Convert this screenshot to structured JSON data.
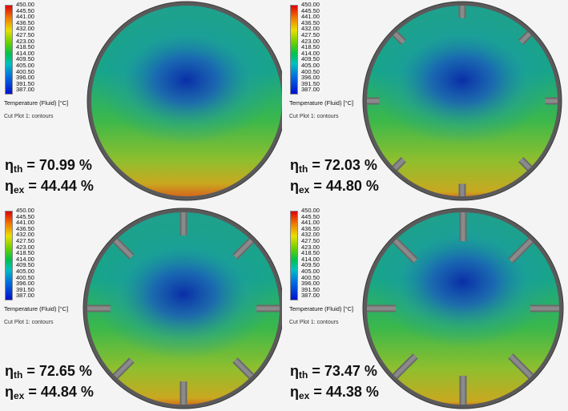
{
  "legend": {
    "ticks": [
      "450.00",
      "445.50",
      "441.00",
      "436.50",
      "432.00",
      "427.50",
      "423.00",
      "418.50",
      "414.00",
      "409.50",
      "405.00",
      "400.50",
      "396.00",
      "391.50",
      "387.00"
    ],
    "title": "Temperature (Fluid) [°C]",
    "cutplot": "Cut Plot 1: contours"
  },
  "symbols": {
    "eta": "η",
    "th": "th",
    "ex": "ex",
    "eq": " = ",
    "pct": " %"
  },
  "panels": [
    {
      "fins": 0,
      "eta_th": "70.99",
      "eta_ex": "44.44"
    },
    {
      "fins": 8,
      "eta_th": "72.03",
      "eta_ex": "44.80"
    },
    {
      "fins": 8,
      "eta_th": "72.65",
      "eta_ex": "44.84"
    },
    {
      "fins": 8,
      "eta_th": "73.47",
      "eta_ex": "44.38"
    }
  ],
  "colors": {
    "frame": "#5a5a5a",
    "fin": "#6a6a6a",
    "cold": "#0a2ea8",
    "mid": "#17a58a",
    "warm": "#3cb84a",
    "hot": "#d9541a"
  }
}
